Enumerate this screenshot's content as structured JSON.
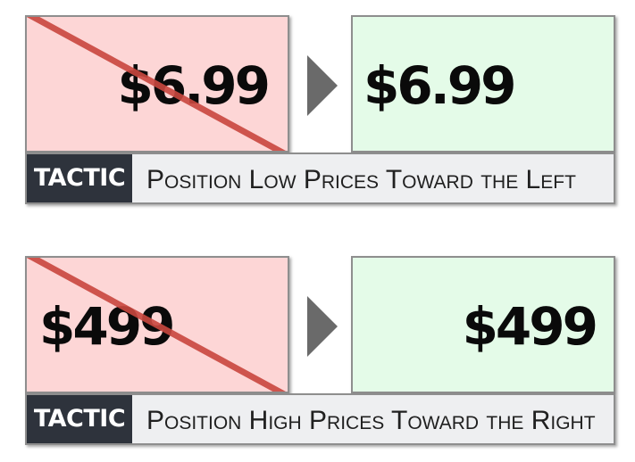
{
  "tactics": [
    {
      "before_price": "$6.99",
      "after_price": "$6.99",
      "tag": "TACTIC",
      "text": "Position Low Prices Toward the Left"
    },
    {
      "before_price": "$499",
      "after_price": "$499",
      "tag": "TACTIC",
      "text": "Position High Prices Toward the Right"
    }
  ],
  "colors": {
    "bad_fill": "#fdd6d6",
    "good_fill": "#e4fbe8",
    "strike_line": "#c9473f",
    "arrow": "#6a6a6a",
    "tag_fill": "#2e333c",
    "bar_fill": "#eeeff1"
  },
  "icons": {
    "strike": "diagonal-strike-line",
    "arrow": "right-triangle-arrow"
  }
}
